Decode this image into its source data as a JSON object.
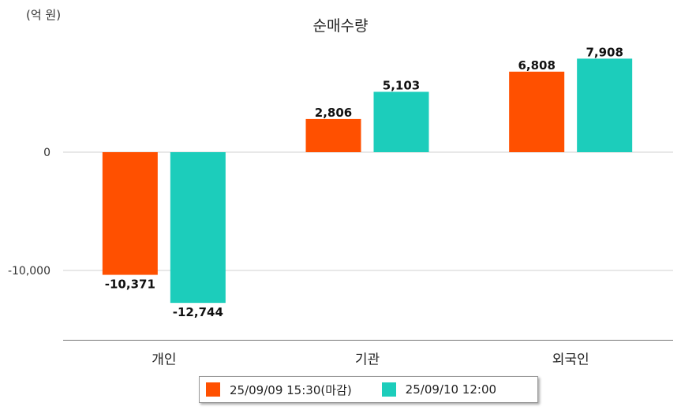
{
  "unit_label": "(억 원)",
  "chart_data": {
    "type": "bar",
    "title": "순매수량",
    "xlabel": "",
    "ylabel": "",
    "categories": [
      "개인",
      "기관",
      "외국인"
    ],
    "series": [
      {
        "name": "25/09/09 15:30(마감)",
        "color": "#ff5000",
        "values": [
          -10371,
          2806,
          6808
        ]
      },
      {
        "name": "25/09/10 12:00",
        "color": "#1ccdbb",
        "values": [
          -12744,
          5103,
          7908
        ]
      }
    ],
    "value_labels": [
      [
        "-10,371",
        "2,806",
        "6,808"
      ],
      [
        "-12,744",
        "5,103",
        "7,908"
      ]
    ],
    "y_ticks": [
      0,
      -10000
    ],
    "y_tick_labels": [
      "0",
      "-10,000"
    ],
    "ylim": [
      -15900,
      8000
    ],
    "grid": true,
    "legend_position": "bottom"
  }
}
